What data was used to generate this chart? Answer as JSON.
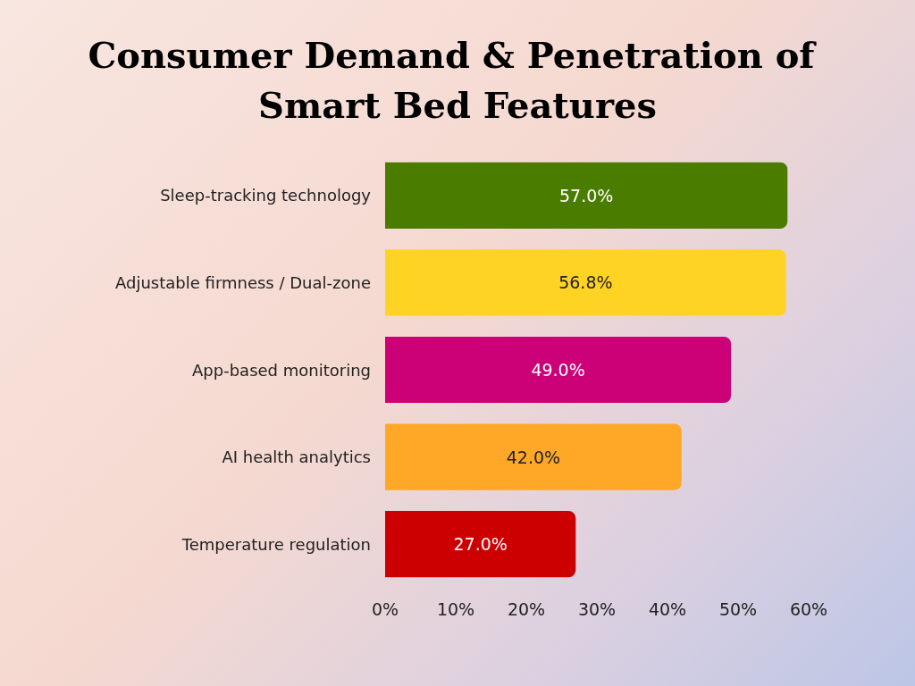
{
  "chart_data": {
    "type": "bar",
    "orientation": "horizontal",
    "title": "Consumer Demand & Penetration of Smart Bed Features",
    "categories": [
      "Sleep-tracking technology",
      "Adjustable firmness / Dual-zone",
      "App-based monitoring",
      "AI health analytics",
      "Temperature regulation"
    ],
    "values": [
      57.0,
      56.8,
      49.0,
      42.0,
      27.0
    ],
    "colors": [
      "#4a7c00",
      "#ffd324",
      "#cc0077",
      "#ffa726",
      "#cc0000"
    ],
    "value_labels": [
      "57.0%",
      "56.8%",
      "49.0%",
      "42.0%",
      "27.0%"
    ],
    "xlim": [
      0,
      60
    ],
    "xticks": [
      {
        "value": 0,
        "label": "0%"
      },
      {
        "value": 10,
        "label": "10%"
      },
      {
        "value": 20,
        "label": "20%"
      },
      {
        "value": 30,
        "label": "30%"
      },
      {
        "value": 40,
        "label": "40%"
      },
      {
        "value": 50,
        "label": "50%"
      },
      {
        "value": 60,
        "label": "60%"
      }
    ],
    "grid": false
  }
}
